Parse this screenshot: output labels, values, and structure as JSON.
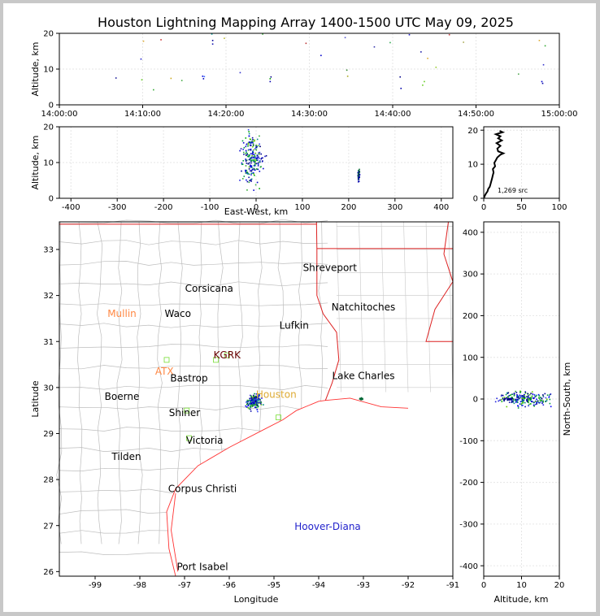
{
  "title": "Houston Lightning Mapping Array 1400-1500 UTC May 09, 2025",
  "chart_data": [
    {
      "id": "time-height",
      "type": "scatter",
      "ylabel": "Altitude, km",
      "xlabel": "",
      "xlim": [
        0,
        60
      ],
      "ylim": [
        0,
        20
      ],
      "xticks": [
        0,
        10,
        20,
        30,
        40,
        50,
        60
      ],
      "xtick_labels": [
        "14:00:00",
        "14:10:00",
        "14:20:00",
        "14:30:00",
        "14:40:00",
        "14:50:00",
        "15:00:00"
      ],
      "yticks": [
        0,
        10,
        20
      ],
      "grid": true,
      "points": [
        {
          "x": 6.8,
          "y": 7.5,
          "c": "#1a1a9a"
        },
        {
          "x": 9.8,
          "y": 12.8,
          "c": "#2222cc"
        },
        {
          "x": 9.9,
          "y": 7.0,
          "c": "#66cc22"
        },
        {
          "x": 10.1,
          "y": 17.8,
          "c": "#ddaa33"
        },
        {
          "x": 11.3,
          "y": 4.2,
          "c": "#33aa33"
        },
        {
          "x": 12.2,
          "y": 18.2,
          "c": "#cc3333"
        },
        {
          "x": 13.4,
          "y": 7.4,
          "c": "#ccaa22"
        },
        {
          "x": 14.7,
          "y": 6.8,
          "c": "#44aa44"
        },
        {
          "x": 17.2,
          "y": 8.0,
          "c": "#0000dd"
        },
        {
          "x": 17.3,
          "y": 7.3,
          "c": "#0000bb"
        },
        {
          "x": 17.4,
          "y": 7.9,
          "c": "#3366ff"
        },
        {
          "x": 18.3,
          "y": 19.8,
          "c": "#009999"
        },
        {
          "x": 18.4,
          "y": 18.0,
          "c": "#000099"
        },
        {
          "x": 18.4,
          "y": 17.0,
          "c": "#1111aa"
        },
        {
          "x": 19.8,
          "y": 18.6,
          "c": "#bbbb33"
        },
        {
          "x": 21.7,
          "y": 9.0,
          "c": "#3333cc"
        },
        {
          "x": 24.4,
          "y": 19.8,
          "c": "#33aa33"
        },
        {
          "x": 25.3,
          "y": 7.3,
          "c": "#009900"
        },
        {
          "x": 25.3,
          "y": 6.5,
          "c": "#0000aa"
        },
        {
          "x": 25.4,
          "y": 7.8,
          "c": "#000088"
        },
        {
          "x": 29.6,
          "y": 17.2,
          "c": "#bb3333"
        },
        {
          "x": 31.4,
          "y": 13.8,
          "c": "#0000cc"
        },
        {
          "x": 34.3,
          "y": 18.8,
          "c": "#5555cc"
        },
        {
          "x": 34.5,
          "y": 9.7,
          "c": "#338833"
        },
        {
          "x": 34.6,
          "y": 8.0,
          "c": "#aaaa22"
        },
        {
          "x": 37.8,
          "y": 16.2,
          "c": "#3333aa"
        },
        {
          "x": 39.7,
          "y": 17.4,
          "c": "#33aa55"
        },
        {
          "x": 41.0,
          "y": 4.6,
          "c": "#0000aa"
        },
        {
          "x": 40.9,
          "y": 7.8,
          "c": "#000088"
        },
        {
          "x": 42.0,
          "y": 19.6,
          "c": "#2222cc"
        },
        {
          "x": 43.4,
          "y": 14.8,
          "c": "#2222aa"
        },
        {
          "x": 43.8,
          "y": 6.5,
          "c": "#66cc22"
        },
        {
          "x": 43.6,
          "y": 5.5,
          "c": "#66cc22"
        },
        {
          "x": 44.2,
          "y": 13.0,
          "c": "#ddaa33"
        },
        {
          "x": 45.2,
          "y": 10.5,
          "c": "#99cc33"
        },
        {
          "x": 46.8,
          "y": 19.6,
          "c": "#cc4444"
        },
        {
          "x": 48.5,
          "y": 17.5,
          "c": "#aaaa55"
        },
        {
          "x": 55.1,
          "y": 8.6,
          "c": "#55aa55"
        },
        {
          "x": 57.6,
          "y": 18.0,
          "c": "#ddaa33"
        },
        {
          "x": 57.9,
          "y": 6.5,
          "c": "#0000cc"
        },
        {
          "x": 58.0,
          "y": 6.0,
          "c": "#0000aa"
        },
        {
          "x": 58.1,
          "y": 11.2,
          "c": "#3333cc"
        },
        {
          "x": 58.3,
          "y": 16.5,
          "c": "#33aa33"
        }
      ]
    },
    {
      "id": "ew-height",
      "type": "scatter",
      "xlabel": "East-West, km",
      "ylabel": "Altitude, km",
      "xlim": [
        -425,
        425
      ],
      "ylim": [
        0,
        20
      ],
      "xticks": [
        -400,
        -300,
        -200,
        -100,
        0,
        100,
        200,
        300,
        400
      ],
      "yticks": [
        0,
        10,
        20
      ],
      "grid": true
    },
    {
      "id": "source-histogram",
      "type": "line",
      "xlim": [
        0,
        100
      ],
      "ylim": [
        0,
        21
      ],
      "xticks": [
        0,
        50,
        100
      ],
      "yticks": [
        0,
        10,
        20
      ],
      "annotation": "1,269 src",
      "grid": true,
      "profile": [
        {
          "x": 0.5,
          "y": 0.2
        },
        {
          "x": 1.5,
          "y": 0.8
        },
        {
          "x": 3,
          "y": 1.4
        },
        {
          "x": 5,
          "y": 2.0
        },
        {
          "x": 6,
          "y": 2.8
        },
        {
          "x": 8,
          "y": 3.4
        },
        {
          "x": 9,
          "y": 4.2
        },
        {
          "x": 10,
          "y": 5.0
        },
        {
          "x": 11,
          "y": 5.8
        },
        {
          "x": 12,
          "y": 6.8
        },
        {
          "x": 13,
          "y": 7.6
        },
        {
          "x": 12,
          "y": 8.6
        },
        {
          "x": 15,
          "y": 9.4
        },
        {
          "x": 14,
          "y": 10.4
        },
        {
          "x": 16,
          "y": 11.2
        },
        {
          "x": 18,
          "y": 12.0
        },
        {
          "x": 22,
          "y": 12.8
        },
        {
          "x": 26,
          "y": 13.2
        },
        {
          "x": 19,
          "y": 13.8
        },
        {
          "x": 18,
          "y": 14.6
        },
        {
          "x": 22,
          "y": 15.4
        },
        {
          "x": 17,
          "y": 16.2
        },
        {
          "x": 24,
          "y": 17.0
        },
        {
          "x": 19,
          "y": 17.6
        },
        {
          "x": 22,
          "y": 18.2
        },
        {
          "x": 16,
          "y": 18.8
        },
        {
          "x": 25,
          "y": 19.4
        },
        {
          "x": 21,
          "y": 19.8
        }
      ]
    },
    {
      "id": "plan-view",
      "type": "scatter",
      "xlabel": "Longitude",
      "ylabel": "Latitude",
      "xlim": [
        -99.8,
        -91.0
      ],
      "ylim": [
        25.9,
        33.6
      ],
      "xticks": [
        -99,
        -98,
        -97,
        -96,
        -95,
        -94,
        -93,
        -92,
        -91
      ],
      "yticks": [
        26,
        27,
        28,
        29,
        30,
        31,
        32,
        33
      ],
      "grid": false,
      "places": [
        {
          "name": "Shreveport",
          "lon": -93.75,
          "lat": 32.6,
          "color": "#000000"
        },
        {
          "name": "Corsicana",
          "lon": -96.45,
          "lat": 32.15,
          "color": "#000000"
        },
        {
          "name": "Natchitoches",
          "lon": -93.0,
          "lat": 31.75,
          "color": "#000000"
        },
        {
          "name": "Mullin",
          "lon": -98.4,
          "lat": 31.6,
          "color": "#ff8844"
        },
        {
          "name": "Waco",
          "lon": -97.15,
          "lat": 31.6,
          "color": "#000000"
        },
        {
          "name": "Lufkin",
          "lon": -94.55,
          "lat": 31.35,
          "color": "#000000"
        },
        {
          "name": "KGRK",
          "lon": -96.05,
          "lat": 30.7,
          "color": "#660000"
        },
        {
          "name": "ATX",
          "lon": -97.45,
          "lat": 30.35,
          "color": "#ff8844"
        },
        {
          "name": "Bastrop",
          "lon": -96.9,
          "lat": 30.2,
          "color": "#000000"
        },
        {
          "name": "Lake Charles",
          "lon": -93.0,
          "lat": 30.25,
          "color": "#000000"
        },
        {
          "name": "Houston",
          "lon": -94.95,
          "lat": 29.85,
          "color": "#ddaa33"
        },
        {
          "name": "Boerne",
          "lon": -98.4,
          "lat": 29.8,
          "color": "#000000"
        },
        {
          "name": "Shiner",
          "lon": -97.0,
          "lat": 29.45,
          "color": "#000000"
        },
        {
          "name": "Victoria",
          "lon": -96.55,
          "lat": 28.85,
          "color": "#000000"
        },
        {
          "name": "Tilden",
          "lon": -98.3,
          "lat": 28.5,
          "color": "#000000"
        },
        {
          "name": "Corpus Christi",
          "lon": -96.6,
          "lat": 27.8,
          "color": "#000000"
        },
        {
          "name": "Hoover-Diana",
          "lon": -93.8,
          "lat": 26.98,
          "color": "#2222cc"
        },
        {
          "name": "Port Isabel",
          "lon": -96.6,
          "lat": 26.1,
          "color": "#000000"
        }
      ]
    },
    {
      "id": "height-ns",
      "type": "scatter",
      "xlabel": "Altitude, km",
      "ylabel": "North-South, km",
      "xlim": [
        0,
        20
      ],
      "ylim": [
        -425,
        425
      ],
      "xticks": [
        0,
        10,
        20
      ],
      "yticks": [
        -400,
        -300,
        -200,
        -100,
        0,
        100,
        200,
        300,
        400
      ],
      "grid": true
    }
  ]
}
